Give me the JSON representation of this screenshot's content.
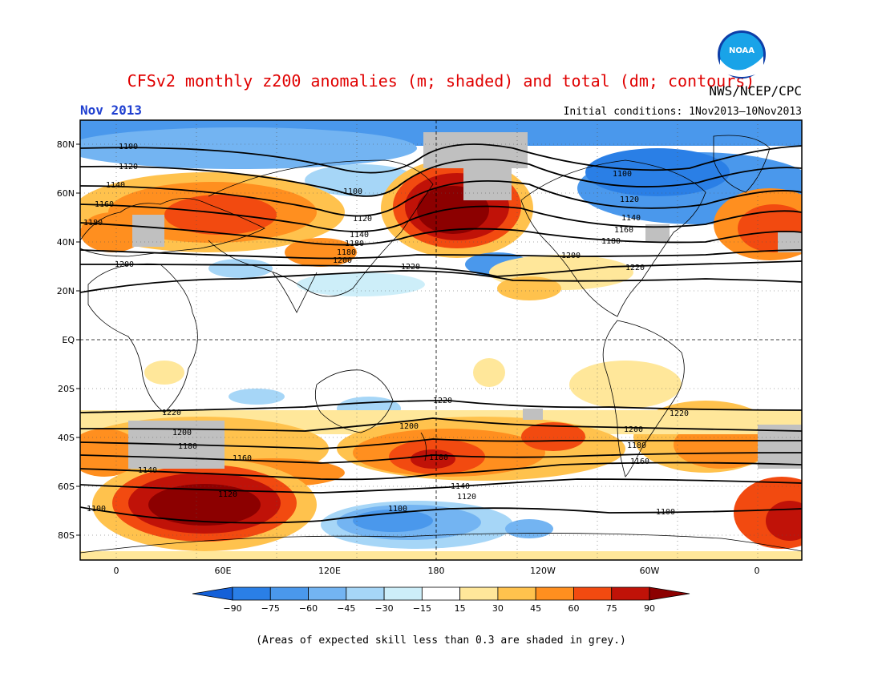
{
  "header": {
    "title": "CFSv2 monthly z200 anomalies (m; shaded) and total (dm; contours)",
    "org": "NWS/NCEP/CPC",
    "month": "Nov 2013",
    "initial_conditions": "Initial conditions: 1Nov2013–10Nov2013",
    "logo_text": "NOAA"
  },
  "map": {
    "lat_labels": [
      "80N",
      "60N",
      "40N",
      "20N",
      "EQ",
      "20S",
      "40S",
      "60S",
      "80S"
    ],
    "lon_labels": [
      "0",
      "60E",
      "120E",
      "180",
      "120W",
      "60W",
      "0"
    ],
    "contour_labels": [
      "1100",
      "1120",
      "1140",
      "1160",
      "1180",
      "1200",
      "1220"
    ]
  },
  "colorbar": {
    "ticks": [
      "−90",
      "−75",
      "−60",
      "−45",
      "−30",
      "−15",
      "15",
      "30",
      "45",
      "60",
      "75",
      "90"
    ],
    "colors": [
      "#1460d8",
      "#2a7fe6",
      "#4a98ec",
      "#73b4f2",
      "#a6d6f7",
      "#cdeef9",
      "#ffffff",
      "#ffe79a",
      "#ffc24d",
      "#ff8f1f",
      "#f24a10",
      "#c01208",
      "#8c0000"
    ]
  },
  "footnote": "(Areas of expected skill less than 0.3 are shaded in grey.)"
}
